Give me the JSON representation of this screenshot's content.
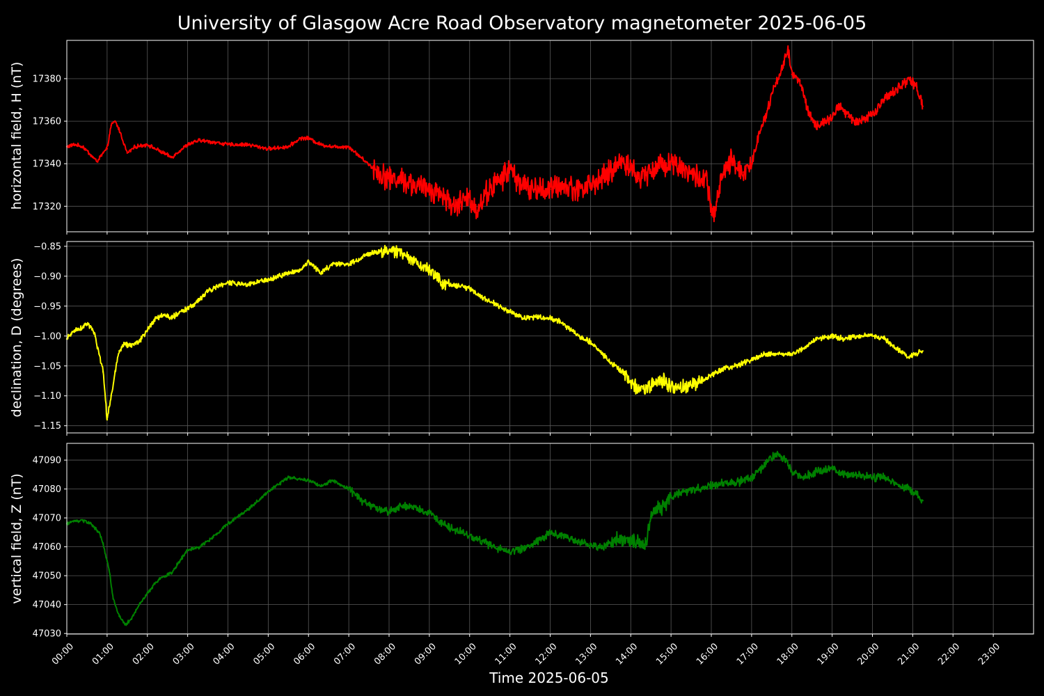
{
  "chart_data": {
    "type": "line",
    "title": "University of Glasgow Acre Road Observatory magnetometer 2025-06-05",
    "xlabel": "Time 2025-06-05",
    "x_unit": "hours",
    "xlim": [
      0,
      24
    ],
    "x_tick_labels": [
      "00:00",
      "01:00",
      "02:00",
      "03:00",
      "04:00",
      "05:00",
      "06:00",
      "07:00",
      "08:00",
      "09:00",
      "10:00",
      "11:00",
      "12:00",
      "13:00",
      "14:00",
      "15:00",
      "16:00",
      "17:00",
      "18:00",
      "19:00",
      "20:00",
      "21:00",
      "22:00",
      "23:00"
    ],
    "grid": true,
    "panels": [
      {
        "ylabel": "horizontal field, H (nT)",
        "color": "#ff0000",
        "ylim": [
          17308,
          17398
        ],
        "yticks": [
          17320,
          17340,
          17360,
          17380
        ],
        "x": [
          0,
          0.2,
          0.4,
          0.6,
          0.75,
          0.9,
          1.0,
          1.1,
          1.2,
          1.3,
          1.5,
          1.7,
          2.0,
          2.3,
          2.6,
          2.8,
          3.0,
          3.3,
          3.7,
          4.0,
          4.5,
          5.0,
          5.5,
          5.8,
          6.0,
          6.3,
          6.6,
          7.0,
          7.3,
          7.6,
          8.0,
          8.3,
          8.6,
          9.0,
          9.3,
          9.6,
          9.8,
          10.0,
          10.2,
          10.4,
          10.6,
          10.8,
          11.0,
          11.2,
          11.5,
          12.0,
          12.3,
          12.6,
          13.0,
          13.3,
          13.6,
          13.8,
          14.0,
          14.2,
          14.4,
          14.6,
          14.8,
          15.0,
          15.3,
          15.6,
          15.9,
          16.0,
          16.1,
          16.3,
          16.5,
          16.8,
          17.0,
          17.2,
          17.4,
          17.6,
          17.8,
          17.9,
          18.0,
          18.2,
          18.4,
          18.6,
          18.8,
          19.0,
          19.2,
          19.4,
          19.6,
          19.8,
          20.0,
          20.3,
          20.6,
          20.9,
          21.1,
          21.25
        ],
        "values": [
          17348,
          17349,
          17348,
          17344,
          17341,
          17345,
          17347,
          17358,
          17360,
          17356,
          17345,
          17348,
          17349,
          17346,
          17343,
          17346,
          17349,
          17351,
          17350,
          17349,
          17349,
          17347,
          17348,
          17352,
          17352,
          17349,
          17348,
          17348,
          17343,
          17338,
          17333,
          17333,
          17330,
          17328,
          17326,
          17320,
          17322,
          17324,
          17318,
          17326,
          17330,
          17333,
          17338,
          17332,
          17328,
          17328,
          17330,
          17328,
          17330,
          17333,
          17338,
          17342,
          17338,
          17333,
          17336,
          17338,
          17340,
          17341,
          17338,
          17334,
          17332,
          17316,
          17318,
          17336,
          17341,
          17336,
          17340,
          17355,
          17366,
          17378,
          17387,
          17394,
          17382,
          17379,
          17365,
          17357,
          17360,
          17361,
          17368,
          17362,
          17360,
          17361,
          17363,
          17370,
          17375,
          17380,
          17376,
          17367
        ]
      },
      {
        "ylabel": "declination, D (degrees)",
        "color": "#ffff00",
        "ylim": [
          -1.162,
          -0.842
        ],
        "yticks": [
          -1.15,
          -1.1,
          -1.05,
          -1.0,
          -0.95,
          -0.9,
          -0.85
        ],
        "ytick_labels": [
          "−1.15",
          "−1.10",
          "−1.05",
          "−1.00",
          "−0.95",
          "−0.90",
          "−0.85"
        ],
        "x": [
          0,
          0.2,
          0.4,
          0.5,
          0.6,
          0.7,
          0.8,
          0.9,
          1.0,
          1.1,
          1.2,
          1.3,
          1.4,
          1.6,
          1.8,
          2.0,
          2.2,
          2.4,
          2.6,
          2.8,
          3.0,
          3.2,
          3.5,
          4.0,
          4.5,
          5.0,
          5.5,
          5.8,
          6.0,
          6.3,
          6.6,
          7.0,
          7.3,
          7.6,
          8.0,
          8.3,
          8.6,
          9.0,
          9.3,
          9.6,
          10.0,
          10.3,
          10.6,
          11.0,
          11.3,
          11.6,
          12.0,
          12.3,
          12.6,
          13.0,
          13.3,
          13.6,
          14.0,
          14.2,
          14.5,
          14.8,
          15.0,
          15.3,
          15.6,
          16.0,
          16.3,
          16.6,
          17.0,
          17.3,
          17.6,
          18.0,
          18.3,
          18.6,
          19.0,
          19.3,
          19.6,
          20.0,
          20.3,
          20.6,
          20.9,
          21.25
        ],
        "values": [
          -1.005,
          -0.99,
          -0.985,
          -0.98,
          -0.985,
          -1.0,
          -1.03,
          -1.06,
          -1.14,
          -1.1,
          -1.06,
          -1.025,
          -1.015,
          -1.015,
          -1.01,
          -0.99,
          -0.97,
          -0.965,
          -0.97,
          -0.96,
          -0.955,
          -0.945,
          -0.925,
          -0.91,
          -0.915,
          -0.905,
          -0.895,
          -0.89,
          -0.875,
          -0.895,
          -0.88,
          -0.88,
          -0.87,
          -0.86,
          -0.858,
          -0.86,
          -0.875,
          -0.89,
          -0.91,
          -0.915,
          -0.92,
          -0.935,
          -0.945,
          -0.96,
          -0.97,
          -0.968,
          -0.97,
          -0.978,
          -0.995,
          -1.01,
          -1.03,
          -1.05,
          -1.075,
          -1.09,
          -1.085,
          -1.075,
          -1.085,
          -1.085,
          -1.08,
          -1.065,
          -1.055,
          -1.05,
          -1.04,
          -1.03,
          -1.03,
          -1.03,
          -1.02,
          -1.005,
          -1.0,
          -1.005,
          -1.0,
          -1.0,
          -1.005,
          -1.02,
          -1.035,
          -1.025
        ]
      },
      {
        "ylabel": "vertical field, Z (nT)",
        "color": "#008000",
        "ylim": [
          47029.8,
          47095.8
        ],
        "yticks": [
          47030,
          47040,
          47050,
          47060,
          47070,
          47080,
          47090
        ],
        "x": [
          0,
          0.2,
          0.4,
          0.6,
          0.8,
          0.9,
          1.0,
          1.05,
          1.15,
          1.3,
          1.45,
          1.6,
          1.8,
          2.0,
          2.3,
          2.6,
          2.8,
          3.0,
          3.3,
          3.6,
          4.0,
          4.5,
          5.0,
          5.5,
          6.0,
          6.3,
          6.6,
          7.0,
          7.3,
          7.6,
          8.0,
          8.3,
          8.6,
          9.0,
          9.3,
          9.6,
          10.0,
          10.3,
          10.6,
          11.0,
          11.3,
          11.6,
          12.0,
          12.3,
          12.6,
          13.0,
          13.3,
          13.6,
          14.0,
          14.2,
          14.4,
          14.5,
          14.6,
          14.8,
          15.0,
          15.3,
          15.6,
          16.0,
          16.3,
          16.6,
          17.0,
          17.3,
          17.6,
          17.8,
          18.0,
          18.3,
          18.6,
          19.0,
          19.3,
          19.6,
          20.0,
          20.3,
          20.6,
          20.9,
          21.1,
          21.25
        ],
        "values": [
          47068,
          47069,
          47069,
          47068,
          47065,
          47061,
          47055,
          47052,
          47042,
          47036,
          47033,
          47035,
          47040,
          47044,
          47049,
          47051,
          47055,
          47059,
          47060,
          47063,
          47068,
          47073,
          47079,
          47084,
          47083,
          47081,
          47083,
          47080,
          47076,
          47074,
          47072,
          47074,
          47074,
          47072,
          47068,
          47066,
          47064,
          47062,
          47060,
          47058,
          47059,
          47061,
          47065,
          47064,
          47062,
          47061,
          47060,
          47062,
          47063,
          47061,
          47062,
          47070,
          47072,
          47074,
          47077,
          47079,
          47080,
          47081,
          47082,
          47082,
          47084,
          47088,
          47092,
          47091,
          47086,
          47084,
          47086,
          47087,
          47085,
          47085,
          47084,
          47084,
          47082,
          47080,
          47078,
          47076
        ]
      }
    ]
  }
}
